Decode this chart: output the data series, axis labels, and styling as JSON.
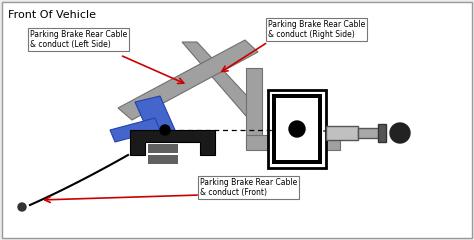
{
  "title": "Front Of Vehicle",
  "bg_color": "#ececec",
  "border_color": "#999999",
  "label_left": "Parking Brake Rear Cable\n& conduct (Left Side)",
  "label_right": "Parking Brake Rear Cable\n& conduct (Right Side)",
  "label_front": "Parking Brake Rear Cable\n& conduct (Front)",
  "title_fontsize": 8,
  "label_fontsize": 5.5,
  "gray_bar_color": "#a0a0a0",
  "gray_bar_edge": "#707070",
  "blue_color": "#4466cc",
  "blue_edge": "#2244aa",
  "black_color": "#111111",
  "white_color": "#ffffff",
  "red_color": "#cc0000"
}
